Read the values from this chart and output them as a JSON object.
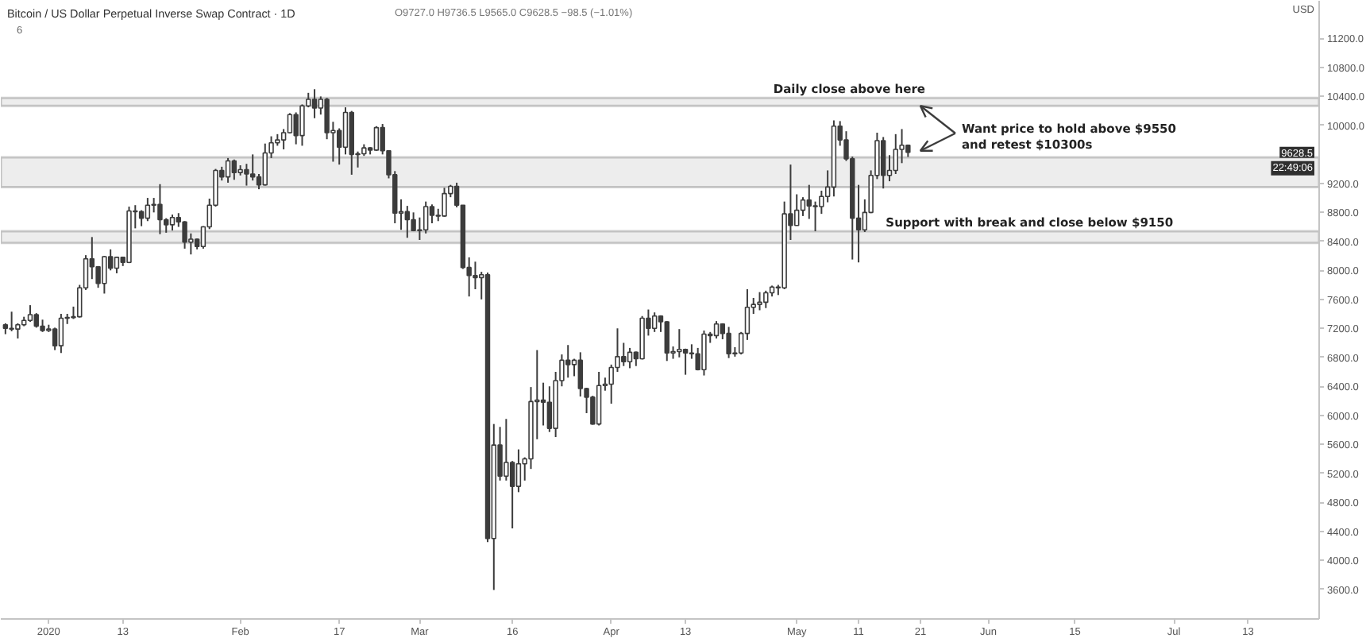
{
  "chart_data": {
    "type": "candlestick",
    "title": "Bitcoin / US Dollar Perpetual Inverse Swap Contract · 1D",
    "subtitle": "O9727.0 H9736.5 L9565.0 C9628.5 −98.5 (−1.01%)",
    "ylabel": "USD",
    "xlim": [
      "2019-12-24T06:00",
      "2020-07-24T12:00"
    ],
    "ylim": [
      3190,
      11720
    ],
    "xticks": [
      {
        "value": "2020-01-01",
        "label": "2020"
      },
      {
        "value": "2020-01-13",
        "label": "13"
      },
      {
        "value": "2020-02-01",
        "label": "Feb"
      },
      {
        "value": "2020-02-17",
        "label": "17"
      },
      {
        "value": "2020-03-01",
        "label": "Mar"
      },
      {
        "value": "2020-03-16",
        "label": "16"
      },
      {
        "value": "2020-04-01",
        "label": "Apr"
      },
      {
        "value": "2020-04-13",
        "label": "13"
      },
      {
        "value": "2020-05-01",
        "label": "May"
      },
      {
        "value": "2020-05-11",
        "label": "11"
      },
      {
        "value": "2020-05-21",
        "label": "21"
      },
      {
        "value": "2020-06-01",
        "label": "Jun"
      },
      {
        "value": "2020-06-15",
        "label": "15"
      },
      {
        "value": "2020-07-01",
        "label": "Jul"
      },
      {
        "value": "2020-07-13",
        "label": "13"
      }
    ],
    "yticks": [
      {
        "value": 3600,
        "label": "3600.0"
      },
      {
        "value": 4000,
        "label": "4000.0"
      },
      {
        "value": 4400,
        "label": "4400.0"
      },
      {
        "value": 4800,
        "label": "4800.0"
      },
      {
        "value": 5200,
        "label": "5200.0"
      },
      {
        "value": 5600,
        "label": "5600.0"
      },
      {
        "value": 6000,
        "label": "6000.0"
      },
      {
        "value": 6400,
        "label": "6400.0"
      },
      {
        "value": 6800,
        "label": "6800.0"
      },
      {
        "value": 7200,
        "label": "7200.0"
      },
      {
        "value": 7600,
        "label": "7600.0"
      },
      {
        "value": 8000,
        "label": "8000.0"
      },
      {
        "value": 8400,
        "label": "8400.0"
      },
      {
        "value": 8800,
        "label": "8800.0"
      },
      {
        "value": 9200,
        "label": "9200.0"
      },
      {
        "value": 10000,
        "label": "10000.0"
      },
      {
        "value": 10400,
        "label": "10400.0"
      },
      {
        "value": 10800,
        "label": "10800.0"
      },
      {
        "value": 11200,
        "label": "11200.0"
      }
    ],
    "x": [
      "2019-12-25",
      "2019-12-26",
      "2019-12-27",
      "2019-12-28",
      "2019-12-29",
      "2019-12-30",
      "2019-12-31",
      "2020-01-01",
      "2020-01-02",
      "2020-01-03",
      "2020-01-04",
      "2020-01-05",
      "2020-01-06",
      "2020-01-07",
      "2020-01-08",
      "2020-01-09",
      "2020-01-10",
      "2020-01-11",
      "2020-01-12",
      "2020-01-13",
      "2020-01-14",
      "2020-01-15",
      "2020-01-16",
      "2020-01-17",
      "2020-01-18",
      "2020-01-19",
      "2020-01-20",
      "2020-01-21",
      "2020-01-22",
      "2020-01-23",
      "2020-01-24",
      "2020-01-25",
      "2020-01-26",
      "2020-01-27",
      "2020-01-28",
      "2020-01-29",
      "2020-01-30",
      "2020-01-31",
      "2020-02-01",
      "2020-02-02",
      "2020-02-03",
      "2020-02-04",
      "2020-02-05",
      "2020-02-06",
      "2020-02-07",
      "2020-02-08",
      "2020-02-09",
      "2020-02-10",
      "2020-02-11",
      "2020-02-12",
      "2020-02-13",
      "2020-02-14",
      "2020-02-15",
      "2020-02-16",
      "2020-02-17",
      "2020-02-18",
      "2020-02-19",
      "2020-02-20",
      "2020-02-21",
      "2020-02-22",
      "2020-02-23",
      "2020-02-24",
      "2020-02-25",
      "2020-02-26",
      "2020-02-27",
      "2020-02-28",
      "2020-02-29",
      "2020-03-01",
      "2020-03-02",
      "2020-03-03",
      "2020-03-04",
      "2020-03-05",
      "2020-03-06",
      "2020-03-07",
      "2020-03-08",
      "2020-03-09",
      "2020-03-10",
      "2020-03-11",
      "2020-03-12",
      "2020-03-13",
      "2020-03-14",
      "2020-03-15",
      "2020-03-16",
      "2020-03-17",
      "2020-03-18",
      "2020-03-19",
      "2020-03-20",
      "2020-03-21",
      "2020-03-22",
      "2020-03-23",
      "2020-03-24",
      "2020-03-25",
      "2020-03-26",
      "2020-03-27",
      "2020-03-28",
      "2020-03-29",
      "2020-03-30",
      "2020-03-31",
      "2020-04-01",
      "2020-04-02",
      "2020-04-03",
      "2020-04-04",
      "2020-04-05",
      "2020-04-06",
      "2020-04-07",
      "2020-04-08",
      "2020-04-09",
      "2020-04-10",
      "2020-04-11",
      "2020-04-12",
      "2020-04-13",
      "2020-04-14",
      "2020-04-15",
      "2020-04-16",
      "2020-04-17",
      "2020-04-18",
      "2020-04-19",
      "2020-04-20",
      "2020-04-21",
      "2020-04-22",
      "2020-04-23",
      "2020-04-24",
      "2020-04-25",
      "2020-04-26",
      "2020-04-27",
      "2020-04-28",
      "2020-04-29",
      "2020-04-30",
      "2020-05-01",
      "2020-05-02",
      "2020-05-03",
      "2020-05-04",
      "2020-05-05",
      "2020-05-06",
      "2020-05-07",
      "2020-05-08",
      "2020-05-09",
      "2020-05-10",
      "2020-05-11",
      "2020-05-12",
      "2020-05-13",
      "2020-05-14",
      "2020-05-15",
      "2020-05-16",
      "2020-05-17",
      "2020-05-18",
      "2020-05-19"
    ],
    "ohlc": [
      [
        7250,
        7270,
        7120,
        7200
      ],
      [
        7200,
        7430,
        7160,
        7190
      ],
      [
        7190,
        7270,
        7060,
        7250
      ],
      [
        7250,
        7360,
        7230,
        7310
      ],
      [
        7310,
        7520,
        7290,
        7390
      ],
      [
        7390,
        7410,
        7210,
        7230
      ],
      [
        7230,
        7320,
        7150,
        7170
      ],
      [
        7170,
        7250,
        7150,
        7190
      ],
      [
        7190,
        7210,
        6900,
        6960
      ],
      [
        6960,
        7400,
        6860,
        7340
      ],
      [
        7340,
        7400,
        7260,
        7350
      ],
      [
        7350,
        7500,
        7330,
        7360
      ],
      [
        7360,
        7800,
        7350,
        7760
      ],
      [
        7760,
        8210,
        7730,
        8160
      ],
      [
        8160,
        8460,
        7880,
        8050
      ],
      [
        8050,
        8060,
        7760,
        7820
      ],
      [
        7820,
        8200,
        7680,
        8190
      ],
      [
        8190,
        8290,
        8000,
        8030
      ],
      [
        8030,
        8190,
        7960,
        8180
      ],
      [
        8180,
        8190,
        8060,
        8110
      ],
      [
        8110,
        8880,
        8100,
        8820
      ],
      [
        8820,
        8900,
        8580,
        8810
      ],
      [
        8810,
        8830,
        8610,
        8720
      ],
      [
        8720,
        9000,
        8680,
        8900
      ],
      [
        8900,
        9000,
        8800,
        8910
      ],
      [
        8910,
        9190,
        8500,
        8700
      ],
      [
        8700,
        8720,
        8520,
        8630
      ],
      [
        8630,
        8770,
        8550,
        8730
      ],
      [
        8730,
        8790,
        8600,
        8670
      ],
      [
        8670,
        8680,
        8300,
        8390
      ],
      [
        8390,
        8510,
        8220,
        8430
      ],
      [
        8430,
        8440,
        8290,
        8330
      ],
      [
        8330,
        8610,
        8300,
        8600
      ],
      [
        8600,
        8990,
        8570,
        8900
      ],
      [
        8900,
        9400,
        8880,
        9380
      ],
      [
        9380,
        9430,
        9240,
        9290
      ],
      [
        9290,
        9550,
        9210,
        9510
      ],
      [
        9510,
        9530,
        9250,
        9350
      ],
      [
        9350,
        9450,
        9310,
        9390
      ],
      [
        9390,
        9470,
        9170,
        9330
      ],
      [
        9330,
        9600,
        9240,
        9290
      ],
      [
        9290,
        9330,
        9120,
        9180
      ],
      [
        9180,
        9750,
        9170,
        9620
      ],
      [
        9620,
        9850,
        9550,
        9760
      ],
      [
        9760,
        9880,
        9720,
        9800
      ],
      [
        9800,
        9950,
        9670,
        9900
      ],
      [
        9900,
        10170,
        9890,
        10150
      ],
      [
        10150,
        10180,
        9740,
        9860
      ],
      [
        9860,
        10290,
        9720,
        10270
      ],
      [
        10270,
        10450,
        10250,
        10360
      ],
      [
        10360,
        10500,
        10100,
        10240
      ],
      [
        10240,
        10400,
        10150,
        10360
      ],
      [
        10360,
        10380,
        9810,
        9900
      ],
      [
        9900,
        10050,
        9500,
        9930
      ],
      [
        9930,
        9960,
        9460,
        9700
      ],
      [
        9700,
        10250,
        9600,
        10180
      ],
      [
        10180,
        10200,
        9320,
        9600
      ],
      [
        9600,
        9640,
        9420,
        9610
      ],
      [
        9610,
        9740,
        9580,
        9690
      ],
      [
        9690,
        9700,
        9600,
        9660
      ],
      [
        9660,
        9990,
        9650,
        9970
      ],
      [
        9970,
        10020,
        9600,
        9650
      ],
      [
        9650,
        9650,
        9270,
        9320
      ],
      [
        9320,
        9370,
        8650,
        8790
      ],
      [
        8790,
        8980,
        8560,
        8810
      ],
      [
        8810,
        8890,
        8450,
        8700
      ],
      [
        8700,
        8800,
        8540,
        8550
      ],
      [
        8550,
        8730,
        8420,
        8560
      ],
      [
        8560,
        8950,
        8510,
        8880
      ],
      [
        8880,
        8910,
        8650,
        8760
      ],
      [
        8760,
        8850,
        8680,
        8750
      ],
      [
        8750,
        9140,
        8740,
        9060
      ],
      [
        9060,
        9180,
        9010,
        9160
      ],
      [
        9160,
        9210,
        8870,
        8900
      ],
      [
        8900,
        8900,
        8020,
        8040
      ],
      [
        8040,
        8180,
        7640,
        7930
      ],
      [
        7930,
        8120,
        7740,
        7900
      ],
      [
        7900,
        7980,
        7600,
        7940
      ],
      [
        7940,
        7970,
        4250,
        4300
      ],
      [
        4300,
        5880,
        3590,
        5590
      ],
      [
        5590,
        5840,
        5100,
        5160
      ],
      [
        5160,
        5950,
        5100,
        5350
      ],
      [
        5350,
        5370,
        4440,
        5020
      ],
      [
        5020,
        5530,
        4940,
        5330
      ],
      [
        5330,
        5420,
        5100,
        5400
      ],
      [
        5400,
        6390,
        5260,
        6190
      ],
      [
        6190,
        6900,
        5670,
        6210
      ],
      [
        6210,
        6450,
        5860,
        6180
      ],
      [
        6180,
        6400,
        5770,
        5820
      ],
      [
        5820,
        6600,
        5700,
        6480
      ],
      [
        6480,
        6840,
        6400,
        6760
      ],
      [
        6760,
        6970,
        6520,
        6700
      ],
      [
        6700,
        6780,
        6540,
        6760
      ],
      [
        6760,
        6870,
        6260,
        6370
      ],
      [
        6370,
        6380,
        6030,
        6250
      ],
      [
        6250,
        6270,
        5870,
        5880
      ],
      [
        5880,
        6600,
        5860,
        6410
      ],
      [
        6410,
        6520,
        6340,
        6430
      ],
      [
        6430,
        6700,
        6160,
        6660
      ],
      [
        6660,
        7200,
        6600,
        6810
      ],
      [
        6810,
        7000,
        6680,
        6740
      ],
      [
        6740,
        6930,
        6650,
        6870
      ],
      [
        6870,
        6880,
        6680,
        6780
      ],
      [
        6780,
        7370,
        6770,
        7340
      ],
      [
        7340,
        7460,
        7100,
        7200
      ],
      [
        7200,
        7420,
        7150,
        7370
      ],
      [
        7370,
        7380,
        7150,
        7290
      ],
      [
        7290,
        7300,
        6750,
        6860
      ],
      [
        6860,
        6950,
        6780,
        6880
      ],
      [
        6880,
        7190,
        6800,
        6910
      ],
      [
        6910,
        6920,
        6560,
        6860
      ],
      [
        6860,
        6980,
        6780,
        6850
      ],
      [
        6850,
        6930,
        6620,
        6630
      ],
      [
        6630,
        7170,
        6550,
        7120
      ],
      [
        7120,
        7150,
        7000,
        7100
      ],
      [
        7100,
        7300,
        7060,
        7260
      ],
      [
        7260,
        7270,
        7050,
        7130
      ],
      [
        7130,
        7220,
        6790,
        6850
      ],
      [
        6850,
        6940,
        6810,
        6860
      ],
      [
        6860,
        7150,
        6840,
        7130
      ],
      [
        7130,
        7740,
        7040,
        7490
      ],
      [
        7490,
        7620,
        7400,
        7530
      ],
      [
        7530,
        7700,
        7450,
        7560
      ],
      [
        7560,
        7720,
        7480,
        7690
      ],
      [
        7690,
        7790,
        7640,
        7770
      ],
      [
        7770,
        7800,
        7660,
        7760
      ],
      [
        7760,
        8950,
        7740,
        8780
      ],
      [
        8780,
        9460,
        8420,
        8620
      ],
      [
        8620,
        9050,
        8620,
        8830
      ],
      [
        8830,
        9010,
        8750,
        8970
      ],
      [
        8970,
        9180,
        8710,
        8890
      ],
      [
        8890,
        8950,
        8540,
        8880
      ],
      [
        8880,
        9100,
        8780,
        9020
      ],
      [
        9020,
        9380,
        8940,
        9150
      ],
      [
        9150,
        10070,
        9020,
        9990
      ],
      [
        9990,
        10060,
        9720,
        9800
      ],
      [
        9800,
        9920,
        9510,
        9540
      ],
      [
        9540,
        9570,
        8150,
        8720
      ],
      [
        8720,
        9180,
        8110,
        8560
      ],
      [
        8560,
        8980,
        8530,
        8800
      ],
      [
        8800,
        9380,
        8790,
        9310
      ],
      [
        9310,
        9900,
        9260,
        9790
      ],
      [
        9790,
        9840,
        9130,
        9310
      ],
      [
        9310,
        9590,
        9230,
        9380
      ],
      [
        9380,
        9880,
        9330,
        9670
      ],
      [
        9670,
        9950,
        9480,
        9727
      ],
      [
        9727.0,
        9736.5,
        9565.0,
        9628.5
      ]
    ],
    "colors": [
      "#3c3c3c",
      "#3c3c3c",
      "#ffffff",
      "#ffffff",
      "#ffffff",
      "#3c3c3c",
      "#3c3c3c",
      "#ffffff",
      "#3c3c3c",
      "#ffffff",
      "#ffffff",
      "#ffffff",
      "#ffffff",
      "#ffffff",
      "#3c3c3c",
      "#3c3c3c",
      "#ffffff",
      "#3c3c3c",
      "#ffffff",
      "#3c3c3c",
      "#ffffff",
      "#3c3c3c",
      "#3c3c3c",
      "#ffffff",
      "#ffffff",
      "#3c3c3c",
      "#3c3c3c",
      "#ffffff",
      "#3c3c3c",
      "#3c3c3c",
      "#ffffff",
      "#3c3c3c",
      "#ffffff",
      "#ffffff",
      "#ffffff",
      "#3c3c3c",
      "#ffffff",
      "#3c3c3c",
      "#ffffff",
      "#3c3c3c",
      "#3c3c3c",
      "#3c3c3c",
      "#ffffff",
      "#ffffff",
      "#ffffff",
      "#ffffff",
      "#ffffff",
      "#3c3c3c",
      "#ffffff",
      "#ffffff",
      "#3c3c3c",
      "#ffffff",
      "#3c3c3c",
      "#ffffff",
      "#3c3c3c",
      "#ffffff",
      "#3c3c3c",
      "#ffffff",
      "#ffffff",
      "#3c3c3c",
      "#ffffff",
      "#3c3c3c",
      "#3c3c3c",
      "#3c3c3c",
      "#ffffff",
      "#3c3c3c",
      "#3c3c3c",
      "#ffffff",
      "#ffffff",
      "#3c3c3c",
      "#3c3c3c",
      "#ffffff",
      "#ffffff",
      "#3c3c3c",
      "#3c3c3c",
      "#3c3c3c",
      "#3c3c3c",
      "#ffffff",
      "#3c3c3c",
      "#ffffff",
      "#3c3c3c",
      "#ffffff",
      "#3c3c3c",
      "#ffffff",
      "#ffffff",
      "#ffffff",
      "#ffffff",
      "#3c3c3c",
      "#3c3c3c",
      "#ffffff",
      "#ffffff",
      "#3c3c3c",
      "#ffffff",
      "#3c3c3c",
      "#3c3c3c",
      "#3c3c3c",
      "#ffffff",
      "#ffffff",
      "#ffffff",
      "#ffffff",
      "#3c3c3c",
      "#ffffff",
      "#3c3c3c",
      "#ffffff",
      "#3c3c3c",
      "#ffffff",
      "#3c3c3c",
      "#3c3c3c",
      "#ffffff",
      "#ffffff",
      "#3c3c3c",
      "#3c3c3c",
      "#3c3c3c",
      "#ffffff",
      "#3c3c3c",
      "#ffffff",
      "#3c3c3c",
      "#3c3c3c",
      "#ffffff",
      "#ffffff",
      "#ffffff",
      "#ffffff",
      "#ffffff",
      "#ffffff",
      "#ffffff",
      "#3c3c3c",
      "#ffffff",
      "#3c3c3c",
      "#ffffff",
      "#ffffff",
      "#3c3c3c",
      "#3c3c3c",
      "#ffffff",
      "#ffffff",
      "#ffffff",
      "#3c3c3c",
      "#3c3c3c",
      "#3c3c3c",
      "#3c3c3c",
      "#ffffff",
      "#ffffff",
      "#ffffff",
      "#3c3c3c",
      "#ffffff",
      "#ffffff",
      "#ffffff",
      "#3c3c3c"
    ],
    "bands": [
      {
        "axis": "y",
        "from": 10270,
        "to": 10380,
        "label": "Daily close above here",
        "color": "#e8e8e8"
      },
      {
        "axis": "y",
        "from": 9150,
        "to": 9560,
        "color": "#e8e8e8"
      },
      {
        "axis": "y",
        "from": 8380,
        "to": 8540,
        "label": "Support with break and close below $9150",
        "color": "#e8e8e8"
      }
    ],
    "annotations": [
      {
        "text": "Want price to hold above $9550\nand retest $10300s",
        "x": "2020-05-21",
        "y": 9650
      },
      {
        "text": "9628.5",
        "y": 9628.5
      },
      "22:49:06",
      "6"
    ]
  }
}
